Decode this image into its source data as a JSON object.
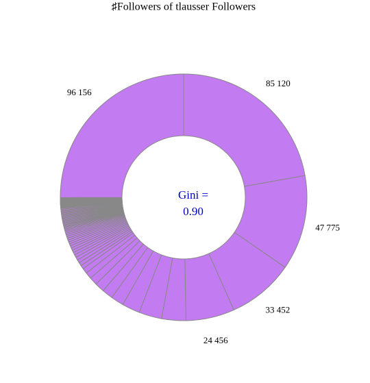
{
  "chart_data": {
    "type": "donut",
    "title": "♯Followers of tlausser Followers",
    "center_text": [
      "Gini =",
      "0.90"
    ],
    "center_color": "#0000cc",
    "color": "#c27bf0",
    "edge_color": "#888888",
    "values": [
      85120,
      47775,
      33452,
      24456,
      12200,
      11500,
      9000,
      6500,
      5500,
      4800,
      4000,
      3300,
      2700,
      1800,
      1700,
      1600,
      1500,
      1400,
      1300,
      1250,
      1200,
      1150,
      1100,
      1050,
      1000,
      950,
      900,
      850,
      800,
      750,
      700,
      650,
      600,
      500,
      500,
      500,
      500,
      500,
      500,
      500,
      500,
      500,
      500,
      500,
      500,
      500,
      500,
      500,
      500,
      500,
      500,
      500,
      500,
      250,
      250,
      250,
      250,
      250,
      250,
      250,
      250,
      250,
      250,
      250,
      250,
      250,
      250,
      250,
      250,
      250,
      250,
      250,
      250,
      250,
      96156
    ],
    "value_labels": [
      "85 120",
      "47 775",
      "33 452",
      "24 456",
      null,
      null,
      null,
      null,
      null,
      null,
      null,
      null,
      null,
      null,
      null,
      null,
      null,
      null,
      null,
      null,
      null,
      null,
      null,
      null,
      null,
      null,
      null,
      null,
      null,
      null,
      null,
      null,
      null,
      null,
      null,
      null,
      null,
      null,
      null,
      null,
      null,
      null,
      null,
      null,
      null,
      null,
      null,
      null,
      null,
      null,
      null,
      null,
      null,
      null,
      null,
      null,
      null,
      null,
      null,
      null,
      null,
      null,
      null,
      null,
      null,
      null,
      null,
      null,
      null,
      null,
      null,
      null,
      null,
      null,
      "96 156"
    ]
  }
}
